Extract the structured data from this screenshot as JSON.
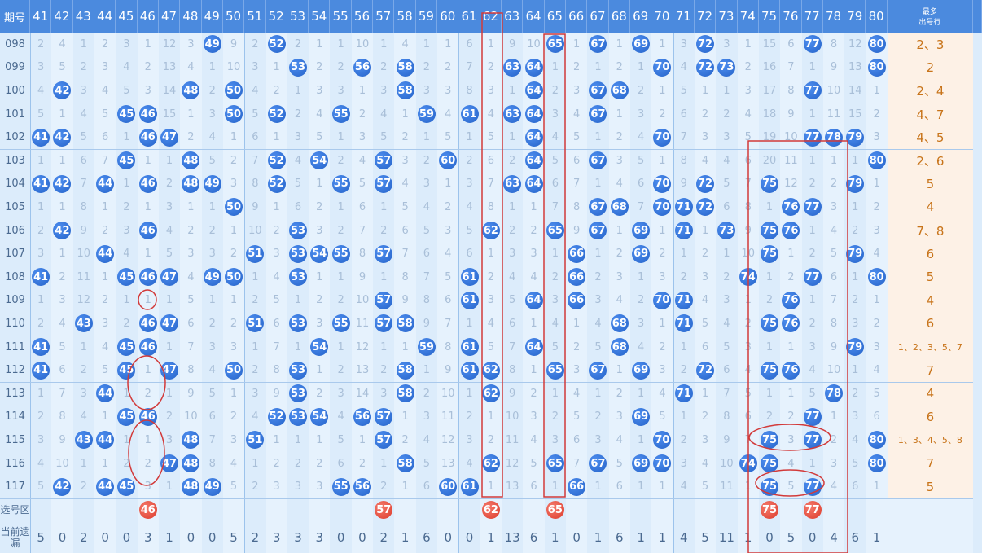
{
  "header": {
    "issue": "期号",
    "most": [
      "最多",
      "出号行"
    ]
  },
  "columns": [
    {
      "number": 41,
      "cells": [
        2,
        3,
        4,
        5,
        41,
        1,
        41,
        1,
        2,
        3,
        41,
        1,
        2,
        41,
        41,
        1,
        2,
        3,
        4,
        5
      ],
      "missing": 5
    },
    {
      "number": 42,
      "cells": [
        4,
        5,
        42,
        1,
        42,
        1,
        42,
        1,
        42,
        1,
        2,
        3,
        4,
        5,
        6,
        7,
        8,
        9,
        10,
        42
      ],
      "missing": 0
    },
    {
      "number": 43,
      "cells": [
        1,
        2,
        3,
        4,
        5,
        6,
        7,
        8,
        9,
        10,
        11,
        12,
        43,
        1,
        2,
        3,
        4,
        43,
        1,
        2
      ],
      "missing": 2
    },
    {
      "number": 44,
      "cells": [
        2,
        3,
        4,
        5,
        6,
        7,
        44,
        1,
        2,
        44,
        1,
        2,
        3,
        4,
        5,
        44,
        1,
        44,
        1,
        44
      ],
      "missing": 0
    },
    {
      "number": 45,
      "cells": [
        3,
        4,
        5,
        45,
        1,
        45,
        1,
        2,
        3,
        4,
        45,
        1,
        2,
        45,
        45,
        1,
        45,
        1,
        2,
        45
      ],
      "missing": 0
    },
    {
      "number": 46,
      "cells": [
        1,
        2,
        3,
        46,
        46,
        1,
        46,
        1,
        46,
        1,
        46,
        1,
        46,
        46,
        1,
        2,
        46,
        1,
        2,
        3
      ],
      "missing": 3
    },
    {
      "number": 47,
      "cells": [
        12,
        13,
        14,
        15,
        47,
        1,
        2,
        3,
        4,
        5,
        47,
        1,
        47,
        1,
        47,
        1,
        2,
        3,
        47,
        1
      ],
      "missing": 1
    },
    {
      "number": 48,
      "cells": [
        3,
        4,
        48,
        1,
        2,
        48,
        48,
        1,
        2,
        3,
        4,
        5,
        6,
        7,
        8,
        9,
        10,
        48,
        48,
        48
      ],
      "missing": 0
    },
    {
      "number": 49,
      "cells": [
        49,
        1,
        2,
        3,
        4,
        5,
        49,
        1,
        2,
        3,
        49,
        1,
        2,
        3,
        4,
        5,
        6,
        7,
        8,
        49
      ],
      "missing": 0
    },
    {
      "number": 50,
      "cells": [
        9,
        10,
        50,
        50,
        1,
        2,
        3,
        50,
        1,
        2,
        50,
        1,
        2,
        3,
        50,
        1,
        2,
        3,
        4,
        5
      ],
      "missing": 5
    },
    {
      "number": 51,
      "cells": [
        2,
        3,
        4,
        5,
        6,
        7,
        8,
        9,
        10,
        51,
        1,
        2,
        51,
        1,
        2,
        3,
        4,
        51,
        1,
        2
      ],
      "missing": 2
    },
    {
      "number": 52,
      "cells": [
        52,
        1,
        2,
        52,
        1,
        52,
        52,
        1,
        2,
        3,
        4,
        5,
        6,
        7,
        8,
        9,
        52,
        1,
        2,
        3
      ],
      "missing": 3
    },
    {
      "number": 53,
      "cells": [
        2,
        53,
        1,
        2,
        3,
        4,
        5,
        6,
        53,
        53,
        53,
        1,
        53,
        1,
        53,
        53,
        53,
        1,
        2,
        3
      ],
      "missing": 3
    },
    {
      "number": 54,
      "cells": [
        1,
        2,
        3,
        4,
        5,
        54,
        1,
        2,
        3,
        54,
        1,
        2,
        3,
        54,
        1,
        2,
        54,
        1,
        2,
        3
      ],
      "missing": 3
    },
    {
      "number": 55,
      "cells": [
        1,
        2,
        3,
        55,
        1,
        2,
        55,
        1,
        2,
        55,
        1,
        2,
        55,
        1,
        2,
        3,
        4,
        5,
        6,
        55
      ],
      "missing": 0
    },
    {
      "number": 56,
      "cells": [
        10,
        56,
        1,
        2,
        3,
        4,
        5,
        6,
        7,
        8,
        9,
        10,
        11,
        12,
        13,
        14,
        56,
        1,
        2,
        56
      ],
      "missing": 0
    },
    {
      "number": 57,
      "cells": [
        1,
        2,
        3,
        4,
        5,
        57,
        57,
        1,
        2,
        57,
        1,
        57,
        57,
        1,
        2,
        3,
        57,
        57,
        1,
        2
      ],
      "missing": 2
    },
    {
      "number": 58,
      "cells": [
        4,
        58,
        58,
        1,
        2,
        3,
        4,
        5,
        6,
        7,
        8,
        9,
        58,
        1,
        58,
        58,
        1,
        2,
        58,
        1
      ],
      "missing": 1
    },
    {
      "number": 59,
      "cells": [
        1,
        2,
        3,
        59,
        1,
        2,
        3,
        4,
        5,
        6,
        7,
        8,
        9,
        59,
        1,
        2,
        3,
        4,
        5,
        6
      ],
      "missing": 6
    },
    {
      "number": 60,
      "cells": [
        1,
        2,
        3,
        4,
        5,
        60,
        1,
        2,
        3,
        4,
        5,
        6,
        7,
        8,
        9,
        10,
        11,
        12,
        13,
        60
      ],
      "missing": 0
    },
    {
      "number": 61,
      "cells": [
        6,
        7,
        8,
        61,
        1,
        2,
        3,
        4,
        5,
        6,
        61,
        61,
        1,
        61,
        61,
        1,
        2,
        3,
        4,
        61
      ],
      "missing": 0
    },
    {
      "number": 62,
      "cells": [
        1,
        2,
        3,
        4,
        5,
        6,
        7,
        8,
        62,
        1,
        2,
        3,
        4,
        5,
        62,
        62,
        1,
        2,
        62,
        1
      ],
      "missing": 1
    },
    {
      "number": 63,
      "cells": [
        9,
        63,
        1,
        63,
        1,
        2,
        63,
        1,
        2,
        3,
        4,
        5,
        6,
        7,
        8,
        9,
        10,
        11,
        12,
        13
      ],
      "missing": 13
    },
    {
      "number": 64,
      "cells": [
        10,
        64,
        64,
        64,
        64,
        64,
        64,
        1,
        2,
        3,
        4,
        64,
        1,
        64,
        1,
        2,
        3,
        4,
        5,
        6
      ],
      "missing": 6
    },
    {
      "number": 65,
      "cells": [
        65,
        1,
        2,
        3,
        4,
        5,
        6,
        7,
        65,
        1,
        2,
        3,
        4,
        5,
        65,
        1,
        2,
        3,
        65,
        1
      ],
      "missing": 1
    },
    {
      "number": 66,
      "cells": [
        1,
        2,
        3,
        4,
        5,
        6,
        7,
        8,
        9,
        66,
        66,
        66,
        1,
        2,
        3,
        4,
        5,
        6,
        7,
        66
      ],
      "missing": 0
    },
    {
      "number": 67,
      "cells": [
        67,
        1,
        67,
        67,
        1,
        67,
        1,
        67,
        67,
        1,
        2,
        3,
        4,
        5,
        67,
        1,
        2,
        3,
        67,
        1
      ],
      "missing": 1
    },
    {
      "number": 68,
      "cells": [
        1,
        2,
        68,
        1,
        2,
        3,
        4,
        68,
        1,
        2,
        3,
        4,
        68,
        68,
        1,
        2,
        3,
        4,
        5,
        6
      ],
      "missing": 6
    },
    {
      "number": 69,
      "cells": [
        69,
        1,
        2,
        3,
        4,
        5,
        6,
        7,
        69,
        69,
        1,
        2,
        3,
        4,
        69,
        1,
        69,
        1,
        69,
        1
      ],
      "missing": 1
    },
    {
      "number": 70,
      "cells": [
        1,
        70,
        1,
        2,
        70,
        1,
        70,
        70,
        1,
        2,
        3,
        70,
        1,
        2,
        3,
        4,
        5,
        70,
        70,
        1
      ],
      "missing": 1
    },
    {
      "number": 71,
      "cells": [
        3,
        4,
        5,
        6,
        7,
        8,
        9,
        71,
        71,
        1,
        2,
        71,
        71,
        1,
        2,
        71,
        1,
        2,
        3,
        4
      ],
      "missing": 4
    },
    {
      "number": 72,
      "cells": [
        72,
        72,
        1,
        2,
        3,
        4,
        72,
        72,
        1,
        2,
        3,
        4,
        5,
        6,
        72,
        1,
        2,
        3,
        4,
        5
      ],
      "missing": 5
    },
    {
      "number": 73,
      "cells": [
        3,
        73,
        1,
        2,
        3,
        4,
        5,
        6,
        73,
        1,
        2,
        3,
        4,
        5,
        6,
        7,
        8,
        9,
        10,
        11
      ],
      "missing": 11
    },
    {
      "number": 74,
      "cells": [
        1,
        2,
        3,
        4,
        5,
        6,
        7,
        8,
        9,
        10,
        74,
        1,
        2,
        3,
        4,
        5,
        6,
        7,
        74,
        1
      ],
      "missing": 1
    },
    {
      "number": 75,
      "cells": [
        15,
        16,
        17,
        18,
        19,
        20,
        75,
        1,
        75,
        75,
        1,
        2,
        75,
        1,
        75,
        1,
        2,
        75,
        75,
        75
      ],
      "missing": 0
    },
    {
      "number": 76,
      "cells": [
        6,
        7,
        8,
        9,
        10,
        11,
        12,
        76,
        76,
        1,
        2,
        76,
        76,
        1,
        76,
        1,
        2,
        3,
        4,
        5
      ],
      "missing": 5
    },
    {
      "number": 77,
      "cells": [
        77,
        1,
        77,
        1,
        77,
        1,
        2,
        77,
        1,
        2,
        77,
        1,
        2,
        3,
        4,
        5,
        77,
        77,
        1,
        77
      ],
      "missing": 0
    },
    {
      "number": 78,
      "cells": [
        8,
        9,
        10,
        11,
        78,
        1,
        2,
        3,
        4,
        5,
        6,
        7,
        8,
        9,
        10,
        78,
        1,
        2,
        3,
        4
      ],
      "missing": 4
    },
    {
      "number": 79,
      "cells": [
        12,
        13,
        14,
        15,
        79,
        1,
        79,
        1,
        2,
        79,
        1,
        2,
        3,
        79,
        1,
        2,
        3,
        4,
        5,
        6
      ],
      "missing": 6
    },
    {
      "number": 80,
      "cells": [
        80,
        80,
        1,
        2,
        3,
        80,
        1,
        2,
        3,
        4,
        80,
        1,
        2,
        3,
        4,
        5,
        6,
        80,
        80,
        1
      ],
      "missing": 1
    }
  ],
  "rows": [
    {
      "issue": "098",
      "most": "2、3"
    },
    {
      "issue": "099",
      "most": "2"
    },
    {
      "issue": "100",
      "most": "2、4"
    },
    {
      "issue": "101",
      "most": "4、7"
    },
    {
      "issue": "102",
      "most": "4、5"
    },
    {
      "issue": "103",
      "most": "2、6"
    },
    {
      "issue": "104",
      "most": "5"
    },
    {
      "issue": "105",
      "most": "4"
    },
    {
      "issue": "106",
      "most": "7、8"
    },
    {
      "issue": "107",
      "most": "6"
    },
    {
      "issue": "108",
      "most": "5"
    },
    {
      "issue": "109",
      "most": "4"
    },
    {
      "issue": "110",
      "most": "6"
    },
    {
      "issue": "111",
      "most": "1、2、3、5、7"
    },
    {
      "issue": "112",
      "most": "7"
    },
    {
      "issue": "113",
      "most": "4"
    },
    {
      "issue": "114",
      "most": "6"
    },
    {
      "issue": "115",
      "most": "1、3、4、5、8"
    },
    {
      "issue": "116",
      "most": "7"
    },
    {
      "issue": "117",
      "most": "5"
    }
  ],
  "selection": {
    "label": "选号区",
    "numbers": [
      46,
      57,
      62,
      65,
      75,
      77
    ]
  },
  "missing_label": "当前遗漏"
}
